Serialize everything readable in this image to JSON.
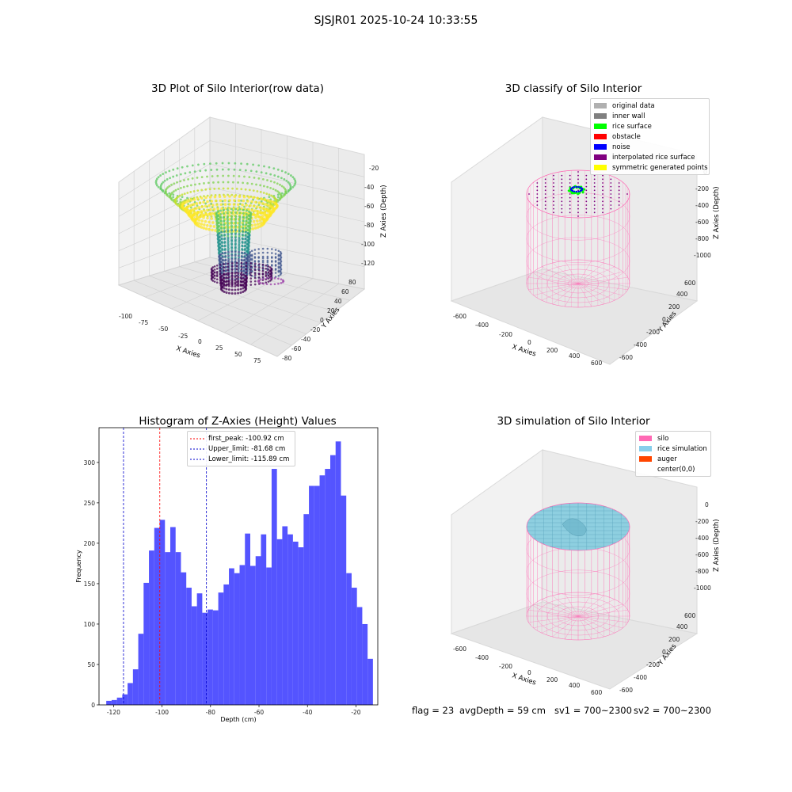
{
  "suptitle": "SJSJR01 2025-10-24 10:33:55",
  "panels": {
    "raw": {
      "title": "3D Plot of Silo Interior(row data)",
      "xlabel": "X Axies",
      "ylabel": "Y Axies",
      "zlabel": "Z Axies (Depth)",
      "xticks": [
        "-100",
        "-75",
        "-50",
        "-25",
        "0",
        "25",
        "50",
        "75"
      ],
      "yticks": [
        "-80",
        "-60",
        "-40",
        "-20",
        "0",
        "20",
        "40",
        "60",
        "80"
      ],
      "zticks": [
        "-20",
        "-40",
        "-60",
        "-80",
        "-100",
        "-120"
      ]
    },
    "classify": {
      "title": "3D classify of Silo Interior",
      "xlabel": "X Axies",
      "ylabel": "Y Axies",
      "zlabel": "Z Axies (Depth)",
      "xticks": [
        "-600",
        "-400",
        "-200",
        "0",
        "200",
        "400",
        "600"
      ],
      "yticks": [
        "-600",
        "-400",
        "-200",
        "0",
        "200",
        "400",
        "600"
      ],
      "zticks": [
        "0",
        "-200",
        "-400",
        "-600",
        "-800",
        "-1000"
      ],
      "legend": [
        {
          "label": "original data",
          "color": "#b0b0b0"
        },
        {
          "label": "inner wall",
          "color": "#808080"
        },
        {
          "label": "rice surface",
          "color": "#00ff00"
        },
        {
          "label": "obstacle",
          "color": "#ff0000"
        },
        {
          "label": "noise",
          "color": "#0000ff"
        },
        {
          "label": "interpolated rice surface",
          "color": "#800080"
        },
        {
          "label": "symmetric generated points",
          "color": "#ffff00"
        }
      ]
    },
    "simulation": {
      "title": "3D simulation of Silo Interior",
      "xlabel": "X Axies",
      "ylabel": "Y Axies",
      "zlabel": "Z Axies (Depth)",
      "xticks": [
        "-600",
        "-400",
        "-200",
        "0",
        "200",
        "400",
        "600"
      ],
      "yticks": [
        "-600",
        "-400",
        "-200",
        "0",
        "200",
        "400",
        "600"
      ],
      "zticks": [
        "0",
        "-200",
        "-400",
        "-600",
        "-800",
        "-1000"
      ],
      "legend": [
        {
          "label": "silo",
          "color": "#ff69b4"
        },
        {
          "label": "rice simulation",
          "color": "#87ceeb"
        },
        {
          "label": "auger",
          "color": "#ff4500"
        },
        {
          "label": "center(0,0)",
          "color": "#ffffff"
        }
      ]
    }
  },
  "chart_data": {
    "type": "bar",
    "title": "Histogram of Z-Axies (Height) Values",
    "xlabel": "Depth (cm)",
    "ylabel": "Frequency",
    "xlim": [
      -126,
      -11
    ],
    "ylim": [
      0,
      343
    ],
    "xticks": [
      -120,
      -100,
      -80,
      -60,
      -40,
      -20
    ],
    "yticks": [
      0,
      50,
      100,
      150,
      200,
      250,
      300
    ],
    "bin_start": -123.0,
    "bin_width": 2.2,
    "color": "#4b4bff",
    "values": [
      5,
      6,
      9,
      13,
      27,
      44,
      88,
      151,
      191,
      219,
      229,
      189,
      220,
      189,
      164,
      145,
      122,
      138,
      114,
      118,
      117,
      139,
      149,
      169,
      163,
      173,
      212,
      172,
      184,
      211,
      170,
      292,
      205,
      221,
      211,
      202,
      195,
      236,
      271,
      271,
      284,
      292,
      309,
      326,
      259,
      163,
      145,
      121,
      100,
      57
    ],
    "vlines": [
      {
        "label": "first_peak: -100.92 cm",
        "x": -100.92,
        "color": "#ff0000"
      },
      {
        "label": "Upper_limit: -81.68 cm",
        "x": -81.68,
        "color": "#0000cc"
      },
      {
        "label": "Lower_limit: -115.89 cm",
        "x": -115.89,
        "color": "#0000cc"
      }
    ],
    "legend_position": "upper-center"
  },
  "footer": {
    "flag": "flag = 23",
    "avg": "avgDepth = 59 cm",
    "sv1": "sv1 = 700~2300",
    "sv2": "sv2 = 700~2300"
  }
}
